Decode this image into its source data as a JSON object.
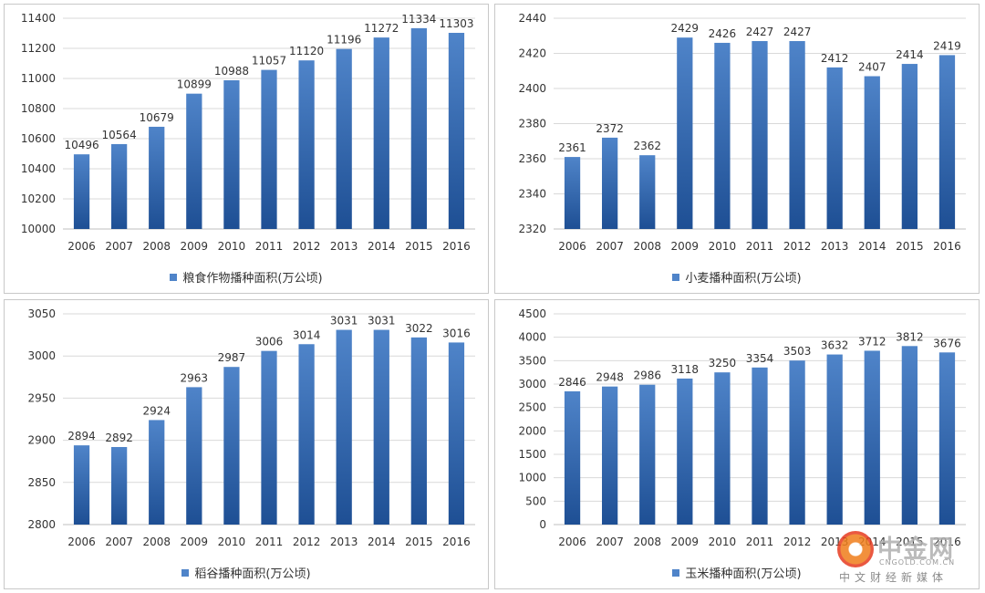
{
  "colors": {
    "bar_top": "#4f84c9",
    "bar_bottom": "#1e4f94",
    "grid": "#d9d9d9",
    "text": "#333333"
  },
  "chart_data": [
    {
      "type": "bar",
      "categories": [
        "2006",
        "2007",
        "2008",
        "2009",
        "2010",
        "2011",
        "2012",
        "2013",
        "2014",
        "2015",
        "2016"
      ],
      "series": [
        {
          "name": "粮食作物播种面积(万公顷)",
          "values": [
            10496,
            10564,
            10679,
            10899,
            10988,
            11057,
            11120,
            11196,
            11272,
            11334,
            11303
          ]
        }
      ],
      "ylim": [
        10000,
        11400
      ],
      "yticks": [
        "10000",
        "10200",
        "10400",
        "10600",
        "10800",
        "11000",
        "11200",
        "11400"
      ],
      "grid": true,
      "legend": "bottom"
    },
    {
      "type": "bar",
      "categories": [
        "2006",
        "2007",
        "2008",
        "2009",
        "2010",
        "2011",
        "2012",
        "2013",
        "2014",
        "2015",
        "2016"
      ],
      "series": [
        {
          "name": "小麦播种面积(万公顷)",
          "values": [
            2361,
            2372,
            2362,
            2429,
            2426,
            2427,
            2427,
            2412,
            2407,
            2414,
            2419
          ]
        }
      ],
      "ylim": [
        2320,
        2440
      ],
      "yticks": [
        "2320",
        "2340",
        "2360",
        "2380",
        "2400",
        "2420",
        "2440"
      ],
      "grid": true,
      "legend": "bottom"
    },
    {
      "type": "bar",
      "categories": [
        "2006",
        "2007",
        "2008",
        "2009",
        "2010",
        "2011",
        "2012",
        "2013",
        "2014",
        "2015",
        "2016"
      ],
      "series": [
        {
          "name": "稻谷播种面积(万公顷)",
          "values": [
            2894,
            2892,
            2924,
            2963,
            2987,
            3006,
            3014,
            3031,
            3031,
            3022,
            3016
          ]
        }
      ],
      "ylim": [
        2800,
        3050
      ],
      "yticks": [
        "2800",
        "2850",
        "2900",
        "2950",
        "3000",
        "3050"
      ],
      "grid": true,
      "legend": "bottom"
    },
    {
      "type": "bar",
      "categories": [
        "2006",
        "2007",
        "2008",
        "2009",
        "2010",
        "2011",
        "2012",
        "2013",
        "2014",
        "2015",
        "2016"
      ],
      "series": [
        {
          "name": "玉米播种面积(万公顷)",
          "values": [
            2846,
            2948,
            2986,
            3118,
            3250,
            3354,
            3503,
            3632,
            3712,
            3812,
            3676
          ]
        }
      ],
      "ylim": [
        0,
        4500
      ],
      "yticks": [
        "0",
        "500",
        "1000",
        "1500",
        "2000",
        "2500",
        "3000",
        "3500",
        "4000",
        "4500"
      ],
      "grid": true,
      "legend": "bottom"
    }
  ],
  "watermark": {
    "name": "中金网",
    "url": "CNGOLD.COM.CN",
    "tagline": "中文财经新媒体",
    "logo_icon": "cngold-logo-icon"
  }
}
